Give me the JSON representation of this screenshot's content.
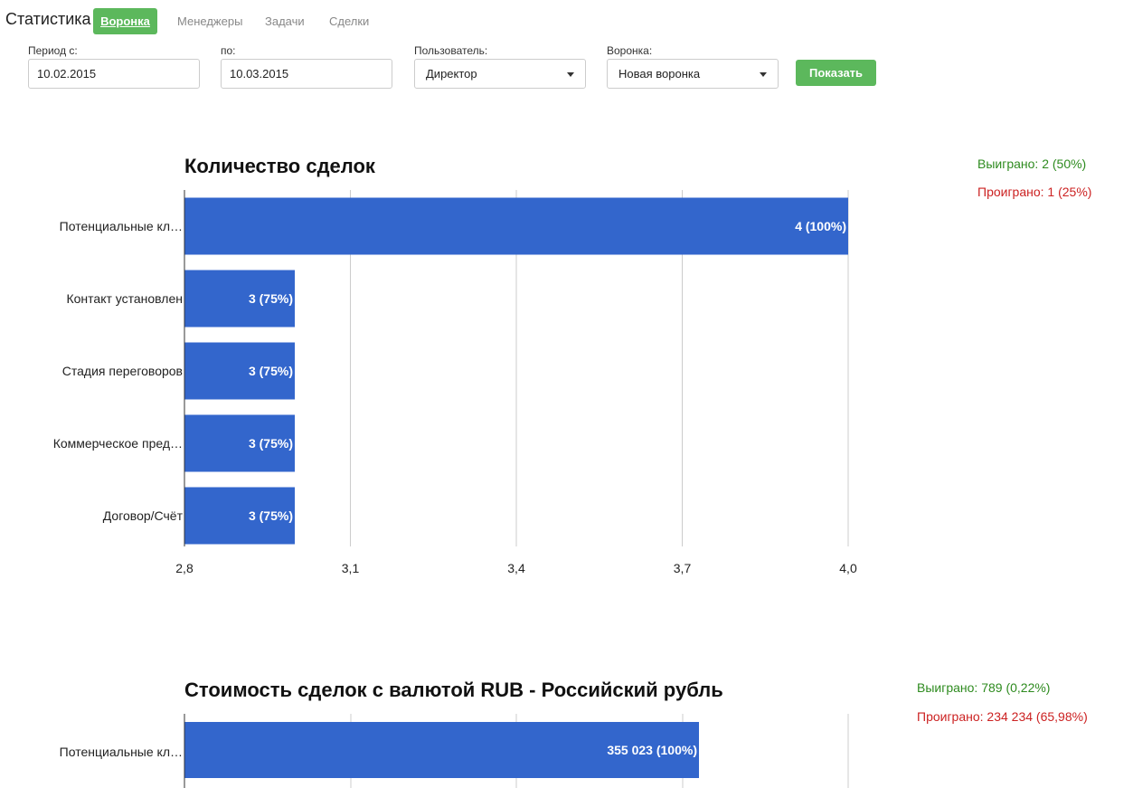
{
  "header": {
    "app_title": "Статистика",
    "tabs": [
      {
        "label": "Воронка",
        "active": true
      },
      {
        "label": "Менеджеры",
        "active": false
      },
      {
        "label": "Задачи",
        "active": false
      },
      {
        "label": "Сделки",
        "active": false
      }
    ]
  },
  "filters": {
    "period_from_label": "Период с:",
    "period_from_value": "10.02.2015",
    "period_to_label": "по:",
    "period_to_value": "10.03.2015",
    "user_label": "Пользователь:",
    "user_value": "Директор",
    "funnel_label": "Воронка:",
    "funnel_value": "Новая воронка",
    "show_button": "Показать"
  },
  "colors": {
    "accent_green": "#5cb85c",
    "bar_blue": "#3366cc",
    "won_green": "#2e8b1f",
    "lost_red": "#cc2222"
  },
  "chart_data": [
    {
      "type": "bar",
      "orientation": "horizontal",
      "title": "Количество сделок",
      "categories": [
        "Потенциальные кл…",
        "Контакт установлен",
        "Стадия переговоров",
        "Коммерческое пред…",
        "Договор/Счёт"
      ],
      "values": [
        4,
        3,
        3,
        3,
        3
      ],
      "value_labels": [
        "4 (100%)",
        "3 (75%)",
        "3 (75%)",
        "3 (75%)",
        "3 (75%)"
      ],
      "xlim": [
        2.8,
        4.0
      ],
      "x_ticks": [
        "2,8",
        "3,1",
        "3,4",
        "3,7",
        "4,0"
      ],
      "grid": true,
      "won": "Выиграно: 2 (50%)",
      "lost": "Проиграно: 1 (25%)"
    },
    {
      "type": "bar",
      "orientation": "horizontal",
      "title": "Стоимость сделок с валютой RUB - Российский рубль",
      "categories": [
        "Потенциальные кл…"
      ],
      "values": [
        355023
      ],
      "value_labels": [
        "355 023 (100%)"
      ],
      "grid": true,
      "won": "Выиграно: 789 (0,22%)",
      "lost": "Проиграно: 234 234 (65,98%)"
    }
  ]
}
